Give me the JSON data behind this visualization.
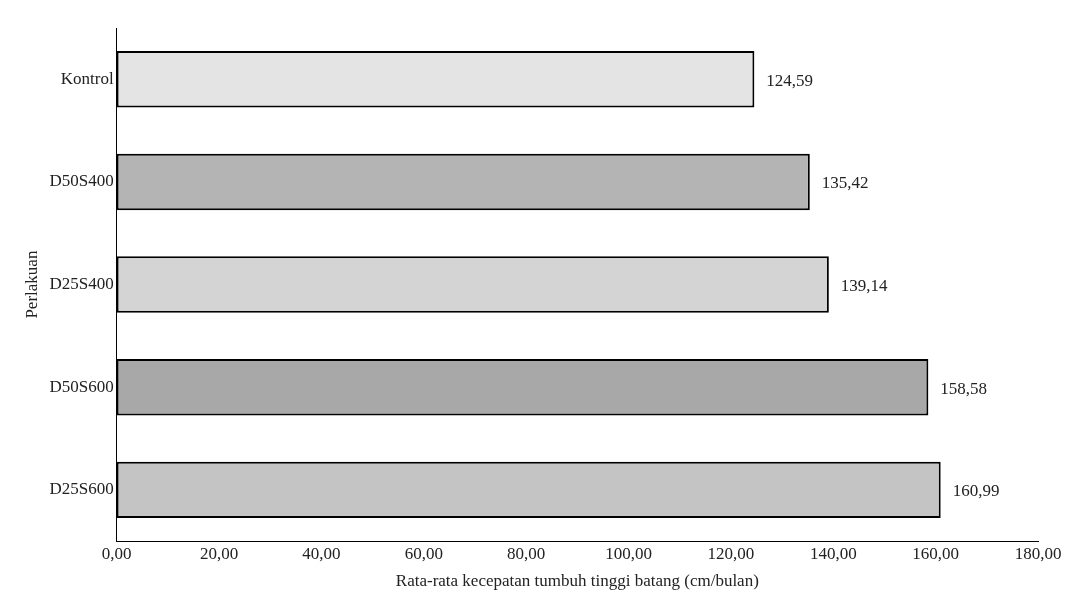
{
  "chart_data": {
    "type": "bar",
    "orientation": "horizontal",
    "xlabel": "Rata-rata kecepatan tumbuh tinggi batang (cm/bulan)",
    "ylabel": "Perlakuan",
    "categories": [
      "Kontrol",
      "D50S400",
      "D25S400",
      "D50S600",
      "D25S600"
    ],
    "values": [
      124.59,
      135.42,
      139.14,
      158.58,
      160.99
    ],
    "value_labels": [
      "124,59",
      "135,42",
      "139,14",
      "158,58",
      "160,99"
    ],
    "colors": [
      "#e4e4e4",
      "#b4b4b4",
      "#d4d4d4",
      "#a8a8a8",
      "#c4c4c4"
    ],
    "xlim": [
      0,
      180
    ],
    "xticks": [
      {
        "value": 0,
        "label": "0,00"
      },
      {
        "value": 20,
        "label": "20,00"
      },
      {
        "value": 40,
        "label": "40,00"
      },
      {
        "value": 60,
        "label": "60,00"
      },
      {
        "value": 80,
        "label": "80,00"
      },
      {
        "value": 100,
        "label": "100,00"
      },
      {
        "value": 120,
        "label": "120,00"
      },
      {
        "value": 140,
        "label": "140,00"
      },
      {
        "value": 160,
        "label": "160,00"
      },
      {
        "value": 180,
        "label": "180,00"
      }
    ],
    "grid": false,
    "legend": false
  }
}
